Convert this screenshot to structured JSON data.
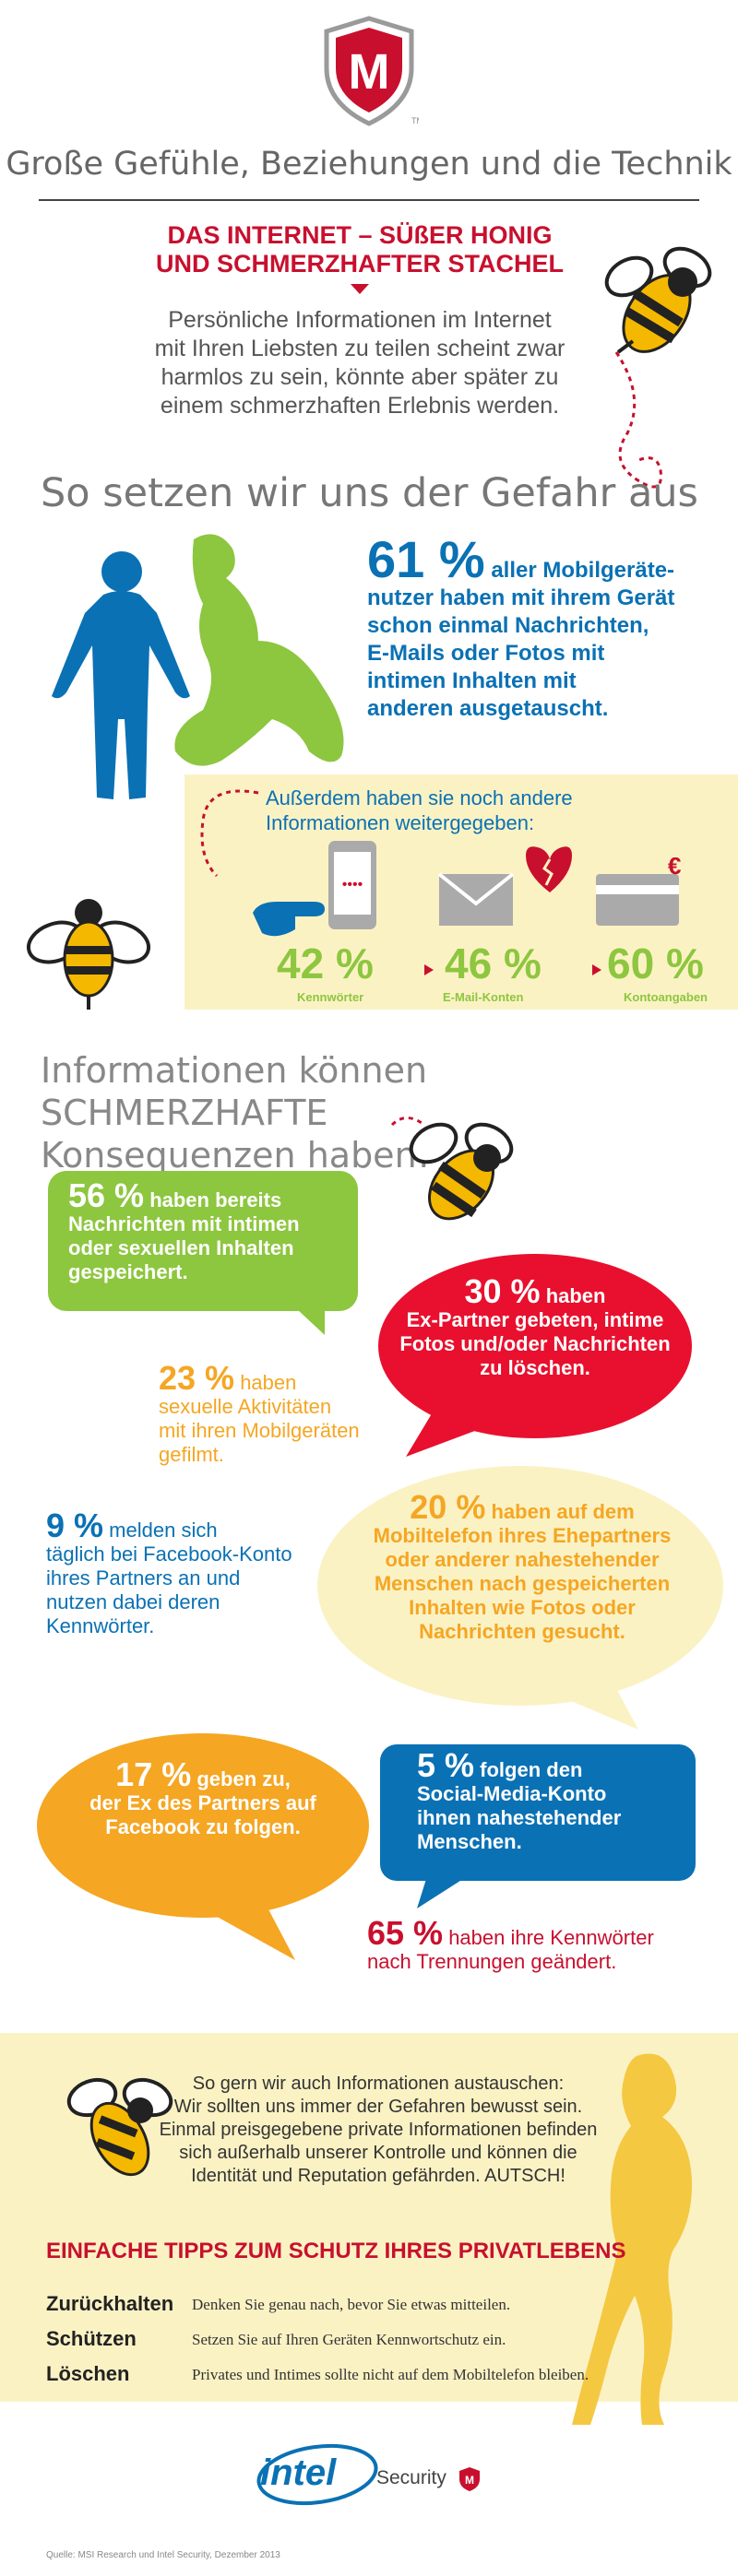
{
  "header": {
    "title": "Große Gefühle, Beziehungen und die Technik",
    "headline_line1": "DAS INTERNET – SÜßER HONIG",
    "headline_line2": "UND SCHMERZHAFTER STACHEL",
    "intro_line1": "Persönliche Informationen im Internet",
    "intro_line2": "mit Ihren Liebsten zu teilen scheint zwar",
    "intro_line3": "harmlos zu sein, könnte aber später zu",
    "intro_line4": "einem schmerzhaften Erlebnis werden."
  },
  "exposure": {
    "heading": "So setzen wir uns der Gefahr aus",
    "stat_value": "61 %",
    "stat_l1": "aller Mobilgeräte-",
    "stat_l2": "nutzer haben mit ihrem Gerät",
    "stat_l3": "schon einmal Nachrichten,",
    "stat_l4": "E-Mails oder Fotos mit",
    "stat_l5": "intimen Inhalten mit",
    "stat_l6": "anderen ausgetauscht."
  },
  "shared": {
    "intro_l1": "Außerdem haben sie noch andere",
    "intro_l2": "Informationen weitergegeben:",
    "items": [
      {
        "value": "42 %",
        "label": "Kennwörter",
        "fraction": 0.42
      },
      {
        "value": "46 %",
        "label": "E-Mail-Konten",
        "fraction": 0.46
      },
      {
        "value": "60 %",
        "label": "Kontoangaben",
        "fraction": 0.6
      }
    ],
    "euro_symbol": "€"
  },
  "consequences": {
    "heading_l1": "Informationen können SCHMERZHAFTE",
    "heading_l2": "Konsequenzen haben!",
    "s56": {
      "value": "56 %",
      "t1": "haben bereits",
      "t2": "Nachrichten mit intimen",
      "t3": "oder sexuellen Inhalten",
      "t4": "gespeichert."
    },
    "s30": {
      "value": "30 %",
      "t1": "haben",
      "t2": "Ex-Partner gebeten, intime",
      "t3": "Fotos und/oder Nachrichten",
      "t4": "zu löschen."
    },
    "s23": {
      "value": "23 %",
      "t1": "haben",
      "t2": "sexuelle Aktivitäten",
      "t3": "mit ihren Mobilgeräten",
      "t4": "gefilmt."
    },
    "s9": {
      "value": "9 %",
      "t1": "melden sich",
      "t2": "täglich bei Facebook-Konto",
      "t3": "ihres Partners an und",
      "t4": "nutzen dabei deren",
      "t5": "Kennwörter."
    },
    "s20": {
      "value": "20 %",
      "t1": "haben auf dem",
      "t2": "Mobiltelefon ihres Ehepartners",
      "t3": "oder anderer nahestehender",
      "t4": "Menschen nach gespeicherten",
      "t5": "Inhalten wie Fotos oder",
      "t6": "Nachrichten gesucht."
    },
    "s17": {
      "value": "17 %",
      "t1": "geben zu,",
      "t2": "der Ex des Partners auf",
      "t3": "Facebook zu folgen."
    },
    "s5": {
      "value": "5 %",
      "t1": "folgen den",
      "t2": "Social-Media-Konto",
      "t3": "ihnen nahestehender",
      "t4": "Menschen."
    },
    "s65": {
      "value": "65 %",
      "t1": "haben ihre Kennwörter",
      "t2": "nach Trennungen geändert."
    }
  },
  "outro": {
    "l1": "So gern wir auch Informationen austauschen:",
    "l2": "Wir sollten uns immer der Gefahren bewusst sein.",
    "l3": "Einmal preisgegebene private Informationen befinden",
    "l4": "sich außerhalb unserer Kontrolle und können die",
    "l5": "Identität und Reputation gefährden. AUTSCH!"
  },
  "tips": {
    "title": "EINFACHE TIPPS ZUM SCHUTZ IHRES PRIVATLEBENS",
    "items": [
      {
        "term": "Zurückhalten",
        "text": "Denken Sie genau nach, bevor Sie etwas mitteilen."
      },
      {
        "term": "Schützen",
        "text": "Setzen Sie auf Ihren Geräten Kennwortschutz ein."
      },
      {
        "term": "Löschen",
        "text": "Privates und Intimes sollte nicht auf dem Mobiltelefon bleiben."
      }
    ]
  },
  "footer": {
    "brand": "intel",
    "brand_suffix": "Security",
    "source": "Quelle: MSI Research und Intel Security, Dezember 2013",
    "logo_letter": "M",
    "logo_tm": "TM"
  },
  "colors": {
    "red": "#c8102e",
    "blue": "#0a71b4",
    "green": "#8dc63f",
    "orange": "#f5a623",
    "yellow_band": "#fbf2c4"
  },
  "icons": [
    "mcafee-shield-icon",
    "bee-icon",
    "phone-hand-icon",
    "envelope-icon",
    "broken-heart-icon",
    "credit-card-icon"
  ]
}
